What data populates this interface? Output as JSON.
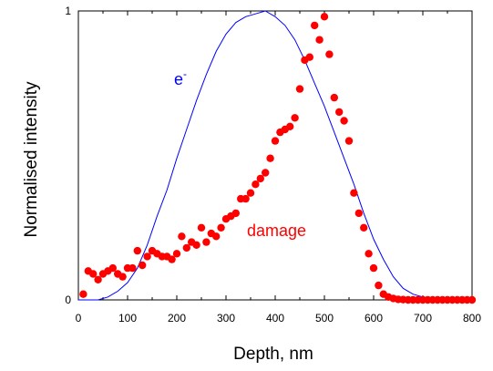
{
  "chart_data": {
    "type": "scatter",
    "xlabel": "Depth, nm",
    "ylabel": "Normalised intensity",
    "xlim": [
      0,
      800
    ],
    "ylim": [
      0,
      1
    ],
    "grid": false,
    "x_ticks": [
      "0",
      "100",
      "200",
      "300",
      "400",
      "500",
      "600",
      "700",
      "800"
    ],
    "y_ticks": [
      "0",
      "1"
    ],
    "series": [
      {
        "name": "e-",
        "label_main": "e",
        "label_sup": "-",
        "kind": "line",
        "color": "#0000ff",
        "x": [
          0,
          40,
          60,
          80,
          100,
          120,
          140,
          160,
          180,
          200,
          220,
          240,
          260,
          280,
          300,
          320,
          340,
          360,
          380,
          400,
          420,
          440,
          460,
          480,
          500,
          520,
          540,
          560,
          580,
          600,
          620,
          640,
          660,
          680,
          700,
          720,
          740,
          760,
          780,
          800
        ],
        "values": [
          0.0,
          0.0,
          0.01,
          0.03,
          0.06,
          0.11,
          0.19,
          0.29,
          0.38,
          0.49,
          0.59,
          0.69,
          0.78,
          0.86,
          0.92,
          0.96,
          0.98,
          0.99,
          1.0,
          0.98,
          0.95,
          0.9,
          0.83,
          0.75,
          0.67,
          0.58,
          0.49,
          0.4,
          0.3,
          0.21,
          0.14,
          0.08,
          0.04,
          0.02,
          0.01,
          0.005,
          0.002,
          0.0,
          0.0,
          0.0
        ]
      },
      {
        "name": "damage",
        "kind": "scatter",
        "color": "#ff0000",
        "x": [
          10,
          20,
          30,
          40,
          50,
          60,
          70,
          80,
          90,
          100,
          110,
          120,
          130,
          140,
          150,
          160,
          170,
          180,
          190,
          200,
          210,
          220,
          230,
          240,
          250,
          260,
          270,
          280,
          290,
          300,
          310,
          320,
          330,
          340,
          350,
          360,
          370,
          380,
          390,
          400,
          410,
          420,
          430,
          440,
          450,
          460,
          470,
          480,
          490,
          500,
          510,
          520,
          530,
          540,
          550,
          560,
          570,
          580,
          590,
          600,
          610,
          620,
          630,
          640,
          650,
          660,
          670,
          680,
          690,
          700,
          710,
          720,
          730,
          740,
          750,
          760,
          770,
          780,
          790,
          800
        ],
        "values": [
          0.02,
          0.1,
          0.09,
          0.07,
          0.09,
          0.1,
          0.11,
          0.09,
          0.08,
          0.11,
          0.11,
          0.17,
          0.12,
          0.15,
          0.17,
          0.16,
          0.15,
          0.15,
          0.14,
          0.16,
          0.22,
          0.18,
          0.2,
          0.19,
          0.25,
          0.2,
          0.23,
          0.22,
          0.25,
          0.28,
          0.29,
          0.3,
          0.35,
          0.35,
          0.37,
          0.4,
          0.42,
          0.44,
          0.49,
          0.55,
          0.58,
          0.59,
          0.6,
          0.63,
          0.73,
          0.83,
          0.84,
          0.95,
          0.9,
          0.98,
          0.85,
          0.7,
          0.65,
          0.62,
          0.55,
          0.37,
          0.3,
          0.25,
          0.16,
          0.11,
          0.05,
          0.02,
          0.01,
          0.005,
          0.002,
          0.001,
          0.0,
          0.0,
          0.0,
          0.0,
          0.0,
          0.0,
          0.0,
          0.0,
          0.0,
          0.0,
          0.0,
          0.0,
          0.0,
          0.0
        ]
      }
    ]
  }
}
